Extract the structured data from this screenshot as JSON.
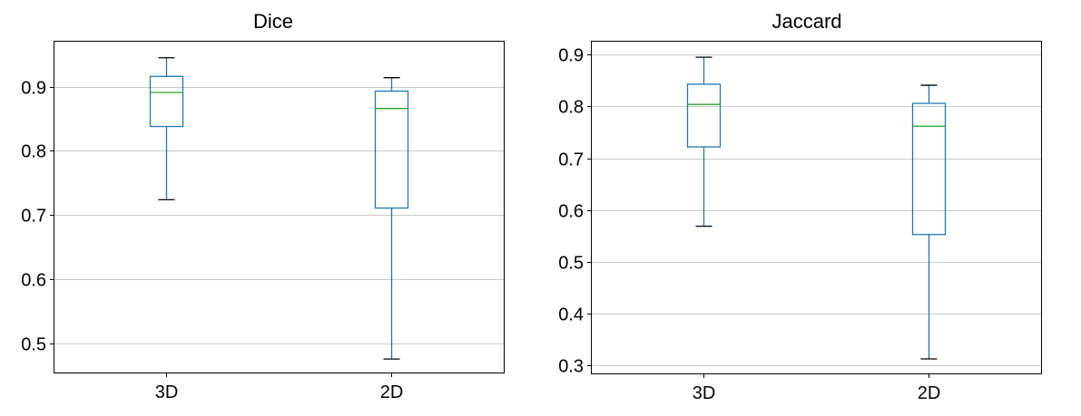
{
  "chart_data": [
    {
      "type": "box",
      "title": "Dice",
      "categories": [
        "3D",
        "2D"
      ],
      "yticks": [
        0.5,
        0.6,
        0.7,
        0.8,
        0.9
      ],
      "ylim": [
        0.455,
        0.97
      ],
      "grid": "horizontal",
      "boxes": [
        {
          "category": "3D",
          "whisker_low": 0.724,
          "q1": 0.838,
          "median": 0.891,
          "q3": 0.916,
          "whisker_high": 0.945
        },
        {
          "category": "2D",
          "whisker_low": 0.476,
          "q1": 0.711,
          "median": 0.866,
          "q3": 0.893,
          "whisker_high": 0.914
        }
      ]
    },
    {
      "type": "box",
      "title": "Jaccard",
      "categories": [
        "3D",
        "2D"
      ],
      "yticks": [
        0.3,
        0.4,
        0.5,
        0.6,
        0.7,
        0.8,
        0.9
      ],
      "ylim": [
        0.285,
        0.925
      ],
      "grid": "horizontal",
      "boxes": [
        {
          "category": "3D",
          "whisker_low": 0.569,
          "q1": 0.722,
          "median": 0.804,
          "q3": 0.843,
          "whisker_high": 0.895
        },
        {
          "category": "2D",
          "whisker_low": 0.313,
          "q1": 0.553,
          "median": 0.762,
          "q3": 0.806,
          "whisker_high": 0.841
        }
      ]
    }
  ],
  "colors": {
    "box": "#1f77b4",
    "median": "#2ca02c",
    "whisker_cap": "#000000",
    "grid": "#c8c8c8"
  }
}
